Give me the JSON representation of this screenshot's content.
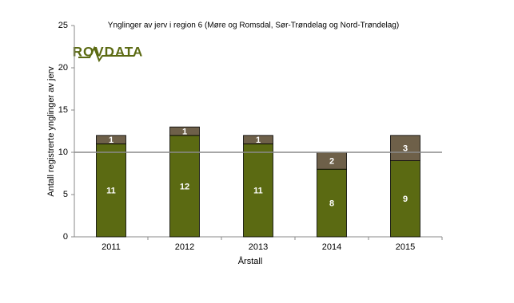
{
  "chart_data": {
    "type": "stacked_bar",
    "title": "Ynglinger av jerv i region 6 (Møre og Romsdal, Sør-Trøndelag og Nord-Trøndelag)",
    "logo": "ROVDATA",
    "x_label": "Årstall",
    "y_label": "Antall registrerte ynglinger av jerv",
    "categories": [
      "2011",
      "2012",
      "2013",
      "2014",
      "2015"
    ],
    "series": [
      {
        "color": "#5b6a12",
        "values": [
          11,
          12,
          11,
          8,
          9
        ]
      },
      {
        "color": "#6e6049",
        "values": [
          1,
          1,
          1,
          2,
          3
        ]
      }
    ],
    "reference_line": 10,
    "ylim": [
      0,
      25
    ],
    "yticks": [
      0,
      5,
      10,
      15,
      20,
      25
    ]
  }
}
